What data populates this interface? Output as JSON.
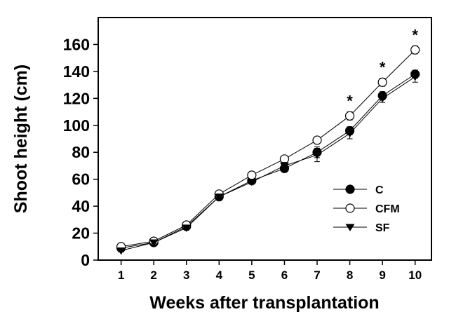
{
  "chart_data": {
    "type": "line",
    "x_label": "Weeks after transplantation",
    "y_label": "Shoot  height  (cm)",
    "x": [
      1,
      2,
      3,
      4,
      5,
      6,
      7,
      8,
      9,
      10
    ],
    "series": [
      {
        "name": "C",
        "color": "#000000",
        "marker": "filled-circle",
        "values": [
          9,
          13,
          25,
          47,
          59,
          68,
          80,
          96,
          122,
          138
        ],
        "errors": [
          1,
          1,
          1,
          1.5,
          1.5,
          2.5,
          4,
          3,
          3,
          3
        ]
      },
      {
        "name": "CFM",
        "color": "#000000",
        "marker": "open-circle",
        "values": [
          10,
          14,
          26,
          49,
          63,
          75,
          89,
          107,
          132,
          156
        ],
        "errors": [
          1,
          1,
          1,
          1.5,
          1.5,
          2,
          2.5,
          3,
          3,
          3
        ]
      },
      {
        "name": "SF",
        "color": "#000000",
        "marker": "filled-triangle-down",
        "values": [
          7,
          13,
          24,
          47,
          58,
          70,
          78,
          94,
          120,
          136
        ],
        "errors": [
          1,
          1,
          1,
          1.5,
          1.5,
          2.5,
          5,
          4,
          3,
          4
        ]
      }
    ],
    "annotations": [
      {
        "x": 8,
        "text": "*"
      },
      {
        "x": 9,
        "text": "*"
      },
      {
        "x": 10,
        "text": "*"
      }
    ],
    "xlim": [
      0.3,
      10.5
    ],
    "ylim": [
      0,
      180
    ],
    "xticks": [
      1,
      2,
      3,
      4,
      5,
      6,
      7,
      8,
      9,
      10
    ],
    "yticks": [
      0,
      20,
      40,
      60,
      80,
      100,
      120,
      140,
      160
    ],
    "grid": false,
    "legend_position": "right"
  }
}
